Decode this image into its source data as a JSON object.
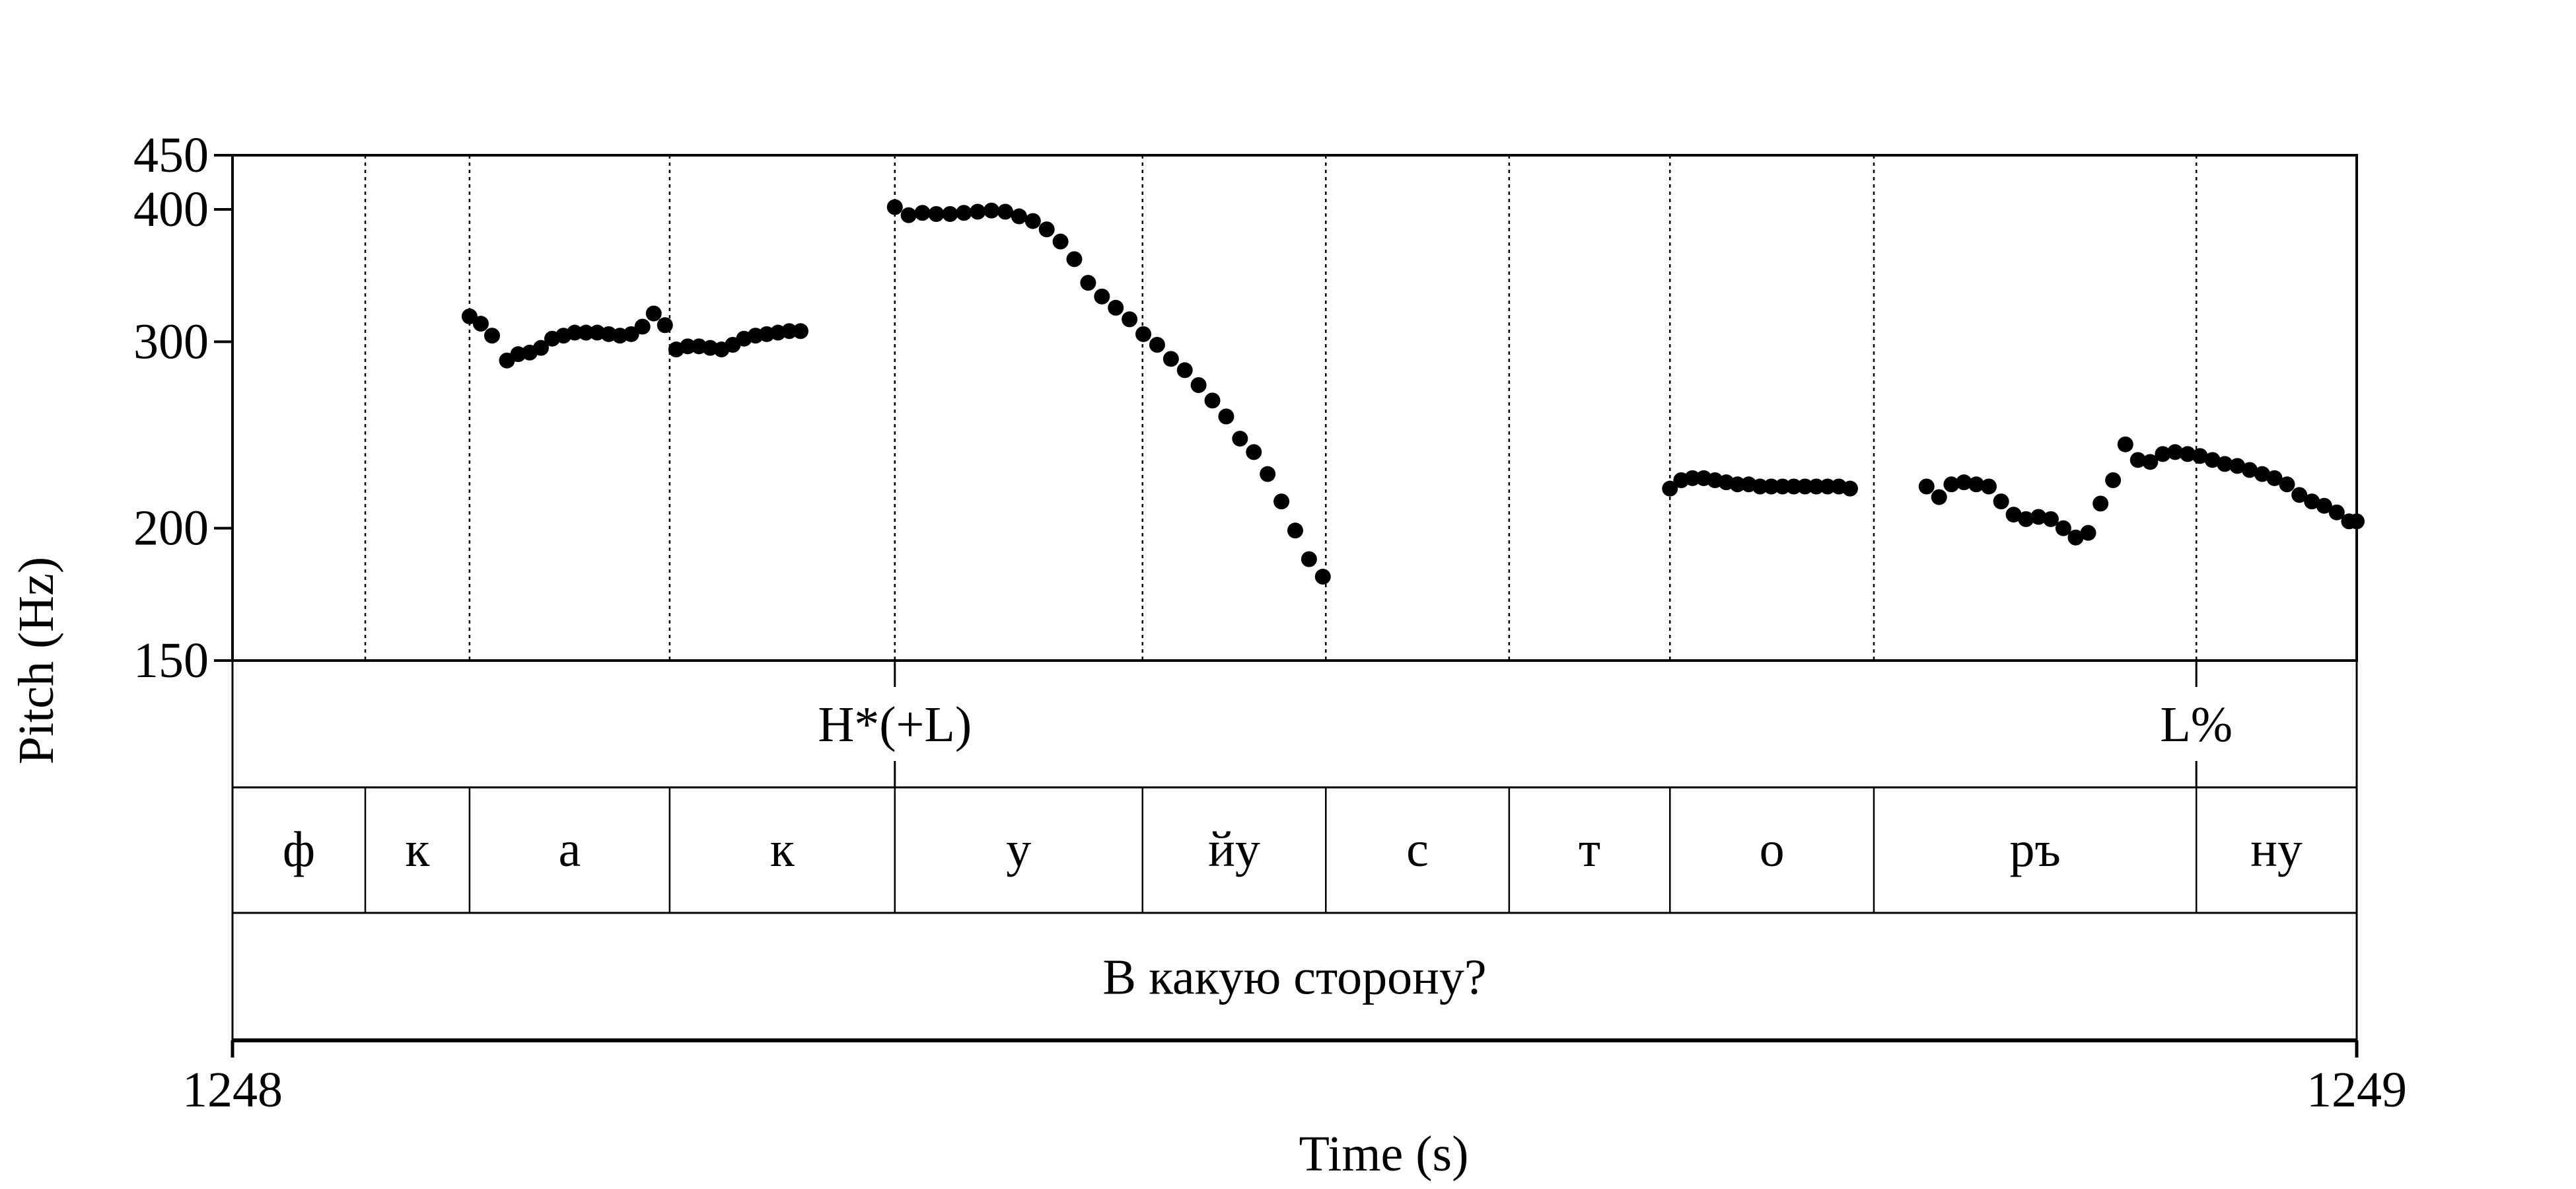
{
  "chart_data": {
    "type": "scatter",
    "title": "",
    "ylabel": "Pitch (Hz)",
    "xlabel": "Time (s)",
    "xlim": [
      1248,
      1249
    ],
    "ylim": [
      150,
      450
    ],
    "y_scale": "log",
    "y_ticks": [
      "150",
      "200",
      "300",
      "400",
      "450"
    ],
    "y_tick_values": [
      150,
      200,
      300,
      400,
      450
    ],
    "x_ticks": [
      "1248",
      "1249"
    ],
    "x_tick_values": [
      1248,
      1249
    ],
    "grid": false,
    "boundaries": [
      1248.0625,
      1248.1116,
      1248.2058,
      1248.3118,
      1248.4284,
      1248.5147,
      1248.601,
      1248.6767,
      1248.7727,
      1248.9245
    ],
    "tones_tier": [
      {
        "label": "H*(+L)",
        "time": 1248.3118
      },
      {
        "label": "L%",
        "time": 1248.9245
      }
    ],
    "phones_tier": [
      {
        "label": "ф",
        "start": 1248.0,
        "end": 1248.0625
      },
      {
        "label": "к",
        "start": 1248.0625,
        "end": 1248.1116
      },
      {
        "label": "а",
        "start": 1248.1116,
        "end": 1248.2058
      },
      {
        "label": "к",
        "start": 1248.2058,
        "end": 1248.3118
      },
      {
        "label": "у",
        "start": 1248.3118,
        "end": 1248.4284
      },
      {
        "label": "йу",
        "start": 1248.4284,
        "end": 1248.5147
      },
      {
        "label": "с",
        "start": 1248.5147,
        "end": 1248.601
      },
      {
        "label": "т",
        "start": 1248.601,
        "end": 1248.6767
      },
      {
        "label": "о",
        "start": 1248.6767,
        "end": 1248.7727
      },
      {
        "label": "ръ",
        "start": 1248.7727,
        "end": 1248.9245
      },
      {
        "label": "ну",
        "start": 1248.9245,
        "end": 1249.0
      }
    ],
    "sentence_tier": {
      "label": "В какую сторону?",
      "start": 1248.0,
      "end": 1249.0
    },
    "series": [
      {
        "x": [
          1248.1116,
          1248.1169,
          1248.1222,
          1248.1292,
          1248.1345,
          1248.1399,
          1248.1452,
          1248.1505,
          1248.1558,
          1248.1611,
          1248.1664,
          1248.1717,
          1248.1771,
          1248.1824,
          1248.1877,
          1248.193,
          1248.1983,
          1248.2036,
          1248.2089,
          1248.2143,
          1248.2196,
          1248.2249,
          1248.2302,
          1248.2355,
          1248.2408,
          1248.2462,
          1248.2515,
          1248.2568,
          1248.2621,
          1248.2674
        ],
        "y": [
          317,
          312,
          304,
          288,
          292,
          293,
          296,
          302,
          304,
          306,
          306,
          306,
          305,
          304,
          305,
          310,
          319,
          311,
          295,
          297,
          297,
          296,
          295,
          298,
          302,
          304,
          305,
          306,
          307,
          307
        ]
      },
      {
        "x": [
          1248.3118,
          1248.3183,
          1248.3248,
          1248.3313,
          1248.3378,
          1248.3443,
          1248.3508,
          1248.3573,
          1248.3638,
          1248.3703,
          1248.3768,
          1248.3833,
          1248.3898,
          1248.3963,
          1248.4028,
          1248.4093,
          1248.4158,
          1248.4223,
          1248.4288,
          1248.4353,
          1248.4418,
          1248.4483,
          1248.4548,
          1248.4613,
          1248.4678,
          1248.4743,
          1248.4808,
          1248.4873,
          1248.4938,
          1248.5003,
          1248.5068,
          1248.5133
        ],
        "y": [
          402,
          395,
          397,
          396,
          396,
          397,
          398,
          399,
          398,
          394,
          390,
          383,
          373,
          359,
          341,
          331,
          323,
          315,
          305,
          298,
          289,
          282,
          273,
          264,
          255,
          243,
          236,
          225,
          212,
          199,
          187,
          180
        ]
      },
      {
        "x": [
          1248.6767,
          1248.682,
          1248.6873,
          1248.6926,
          1248.6979,
          1248.7032,
          1248.7085,
          1248.7138,
          1248.7191,
          1248.7244,
          1248.7297,
          1248.735,
          1248.7403,
          1248.7456,
          1248.7509,
          1248.7562,
          1248.7615
        ],
        "y": [
          218,
          222,
          223,
          223,
          222,
          221,
          220,
          220,
          219,
          219,
          219,
          219,
          219,
          219,
          219,
          219,
          218
        ]
      },
      {
        "x": [
          1248.7975,
          1248.8034,
          1248.8092,
          1248.8151,
          1248.8209,
          1248.8268,
          1248.8326,
          1248.8385,
          1248.8443,
          1248.8502,
          1248.856,
          1248.8619,
          1248.8677,
          1248.8736,
          1248.8794,
          1248.8853,
          1248.8911,
          1248.897,
          1248.9028,
          1248.9087,
          1248.9145,
          1248.9204,
          1248.9262,
          1248.9321,
          1248.9379,
          1248.9438,
          1248.9496,
          1248.9555,
          1248.9613,
          1248.9672,
          1248.973,
          1248.9789,
          1248.9847,
          1248.9906,
          1248.9964,
          1249.0
        ],
        "y": [
          219,
          214,
          220,
          221,
          220,
          219,
          212,
          206,
          204,
          205,
          204,
          200,
          196,
          198,
          211,
          222,
          240,
          232,
          231,
          235,
          236,
          235,
          234,
          232,
          230,
          229,
          227,
          225,
          223,
          220,
          215,
          212,
          210,
          207,
          203,
          203
        ]
      }
    ]
  }
}
